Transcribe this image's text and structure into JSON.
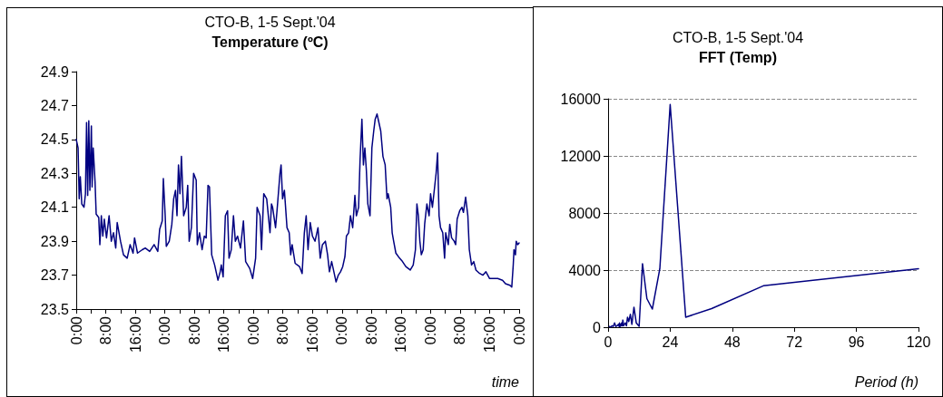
{
  "chart_data": [
    {
      "type": "line",
      "title": "CTO-B, 1-5 Sept.'04",
      "subtitle": "Temperature (ºC)",
      "xlabel": "time",
      "marker": "none",
      "grid": false,
      "xlim": [
        "2004-09-01T00:00",
        "2004-09-06T00:00"
      ],
      "ylim": [
        23.5,
        24.9
      ],
      "yticks": [
        23.5,
        23.7,
        23.9,
        24.1,
        24.3,
        24.5,
        24.7,
        24.9
      ],
      "xticks": [
        {
          "value": "2004-09-01T00:00",
          "label": "0:00"
        },
        {
          "value": "2004-09-01T04:00",
          "label": null
        },
        {
          "value": "2004-09-01T08:00",
          "label": "8:00"
        },
        {
          "value": "2004-09-01T12:00",
          "label": null
        },
        {
          "value": "2004-09-01T16:00",
          "label": "16:00"
        },
        {
          "value": "2004-09-01T20:00",
          "label": null
        },
        {
          "value": "2004-09-02T00:00",
          "label": "0:00"
        },
        {
          "value": "2004-09-02T04:00",
          "label": null
        },
        {
          "value": "2004-09-02T08:00",
          "label": "8:00"
        },
        {
          "value": "2004-09-02T12:00",
          "label": null
        },
        {
          "value": "2004-09-02T16:00",
          "label": "16:00"
        },
        {
          "value": "2004-09-02T20:00",
          "label": null
        },
        {
          "value": "2004-09-03T00:00",
          "label": "0:00"
        },
        {
          "value": "2004-09-03T04:00",
          "label": null
        },
        {
          "value": "2004-09-03T08:00",
          "label": "8:00"
        },
        {
          "value": "2004-09-03T12:00",
          "label": null
        },
        {
          "value": "2004-09-03T16:00",
          "label": "16:00"
        },
        {
          "value": "2004-09-03T20:00",
          "label": null
        },
        {
          "value": "2004-09-04T00:00",
          "label": "0:00"
        },
        {
          "value": "2004-09-04T04:00",
          "label": null
        },
        {
          "value": "2004-09-04T08:00",
          "label": "8:00"
        },
        {
          "value": "2004-09-04T12:00",
          "label": null
        },
        {
          "value": "2004-09-04T16:00",
          "label": "16:00"
        },
        {
          "value": "2004-09-04T20:00",
          "label": null
        },
        {
          "value": "2004-09-05T00:00",
          "label": "0:00"
        },
        {
          "value": "2004-09-05T04:00",
          "label": null
        },
        {
          "value": "2004-09-05T08:00",
          "label": "8:00"
        },
        {
          "value": "2004-09-05T12:00",
          "label": null
        },
        {
          "value": "2004-09-05T16:00",
          "label": "16:00"
        },
        {
          "value": "2004-09-05T20:00",
          "label": null
        },
        {
          "value": "2004-09-06T00:00",
          "label": "0:00"
        }
      ],
      "x": [
        "2004-09-01T00:00",
        "2004-09-01T00:30",
        "2004-09-01T00:48",
        "2004-09-01T01:06",
        "2004-09-01T01:30",
        "2004-09-01T02:06",
        "2004-09-01T02:30",
        "2004-09-01T02:48",
        "2004-09-01T03:06",
        "2004-09-01T03:24",
        "2004-09-01T03:42",
        "2004-09-01T04:06",
        "2004-09-01T04:18",
        "2004-09-01T04:36",
        "2004-09-01T05:06",
        "2004-09-01T05:24",
        "2004-09-01T06:06",
        "2004-09-01T06:24",
        "2004-09-01T06:48",
        "2004-09-01T07:12",
        "2004-09-01T07:36",
        "2004-09-01T08:12",
        "2004-09-01T08:54",
        "2004-09-01T09:30",
        "2004-09-01T10:06",
        "2004-09-01T10:42",
        "2004-09-01T11:06",
        "2004-09-01T12:00",
        "2004-09-01T12:48",
        "2004-09-01T13:48",
        "2004-09-01T14:36",
        "2004-09-01T15:24",
        "2004-09-01T15:48",
        "2004-09-01T16:36",
        "2004-09-01T17:54",
        "2004-09-01T18:42",
        "2004-09-01T19:54",
        "2004-09-01T21:06",
        "2004-09-01T22:06",
        "2004-09-01T22:36",
        "2004-09-01T23:18",
        "2004-09-01T23:36",
        "2004-09-02T00:06",
        "2004-09-02T00:24",
        "2004-09-02T01:12",
        "2004-09-02T01:54",
        "2004-09-02T02:24",
        "2004-09-02T02:54",
        "2004-09-02T03:18",
        "2004-09-02T03:42",
        "2004-09-02T04:06",
        "2004-09-02T04:30",
        "2004-09-02T05:06",
        "2004-09-02T05:48",
        "2004-09-02T06:12",
        "2004-09-02T06:36",
        "2004-09-02T07:12",
        "2004-09-02T07:48",
        "2004-09-02T08:30",
        "2004-09-02T08:48",
        "2004-09-02T09:24",
        "2004-09-02T10:06",
        "2004-09-02T10:42",
        "2004-09-02T11:12",
        "2004-09-02T11:42",
        "2004-09-02T12:06",
        "2004-09-02T12:42",
        "2004-09-02T13:30",
        "2004-09-02T14:24",
        "2004-09-02T15:00",
        "2004-09-02T15:18",
        "2004-09-02T15:48",
        "2004-09-02T16:24",
        "2004-09-02T17:00",
        "2004-09-02T17:24",
        "2004-09-02T18:00",
        "2004-09-02T18:36",
        "2004-09-02T19:06",
        "2004-09-02T19:42",
        "2004-09-02T20:30",
        "2004-09-02T21:18",
        "2004-09-02T21:54",
        "2004-09-02T23:00",
        "2004-09-02T23:48",
        "2004-09-03T00:36",
        "2004-09-03T01:00",
        "2004-09-03T01:48",
        "2004-09-03T02:12",
        "2004-09-03T02:48",
        "2004-09-03T03:36",
        "2004-09-03T04:30",
        "2004-09-03T04:54",
        "2004-09-03T05:12",
        "2004-09-03T06:00",
        "2004-09-03T06:24",
        "2004-09-03T07:12",
        "2004-09-03T07:30",
        "2004-09-03T07:54",
        "2004-09-03T08:24",
        "2004-09-03T09:06",
        "2004-09-03T09:42",
        "2004-09-03T10:06",
        "2004-09-03T10:30",
        "2004-09-03T11:18",
        "2004-09-03T12:30",
        "2004-09-03T13:12",
        "2004-09-03T13:48",
        "2004-09-03T14:18",
        "2004-09-03T14:48",
        "2004-09-03T15:24",
        "2004-09-03T16:00",
        "2004-09-03T16:42",
        "2004-09-03T17:30",
        "2004-09-03T18:06",
        "2004-09-03T18:42",
        "2004-09-03T19:30",
        "2004-09-03T20:06",
        "2004-09-03T20:36",
        "2004-09-03T21:12",
        "2004-09-03T21:42",
        "2004-09-03T22:24",
        "2004-09-03T23:00",
        "2004-09-03T23:36",
        "2004-09-04T00:12",
        "2004-09-04T00:48",
        "2004-09-04T01:12",
        "2004-09-04T01:48",
        "2004-09-04T02:18",
        "2004-09-04T02:54",
        "2004-09-04T03:30",
        "2004-09-04T03:54",
        "2004-09-04T04:30",
        "2004-09-04T04:54",
        "2004-09-04T05:24",
        "2004-09-04T05:48",
        "2004-09-04T06:12",
        "2004-09-04T06:36",
        "2004-09-04T07:00",
        "2004-09-04T07:36",
        "2004-09-04T08:06",
        "2004-09-04T08:36",
        "2004-09-04T09:00",
        "2004-09-04T09:30",
        "2004-09-04T09:54",
        "2004-09-04T10:30",
        "2004-09-04T11:06",
        "2004-09-04T11:42",
        "2004-09-04T12:12",
        "2004-09-04T12:30",
        "2004-09-04T13:12",
        "2004-09-04T13:36",
        "2004-09-04T14:00",
        "2004-09-04T14:36",
        "2004-09-04T15:36",
        "2004-09-04T16:24",
        "2004-09-04T17:18",
        "2004-09-04T18:30",
        "2004-09-04T19:18",
        "2004-09-04T19:54",
        "2004-09-04T20:18",
        "2004-09-04T20:42",
        "2004-09-04T21:06",
        "2004-09-04T21:30",
        "2004-09-04T22:00",
        "2004-09-04T22:24",
        "2004-09-04T23:00",
        "2004-09-04T23:36",
        "2004-09-05T00:00",
        "2004-09-05T00:30",
        "2004-09-05T01:00",
        "2004-09-05T01:30",
        "2004-09-05T01:54",
        "2004-09-05T02:18",
        "2004-09-05T02:42",
        "2004-09-05T03:18",
        "2004-09-05T03:48",
        "2004-09-05T04:06",
        "2004-09-05T04:48",
        "2004-09-05T05:12",
        "2004-09-05T05:42",
        "2004-09-05T06:24",
        "2004-09-05T06:48",
        "2004-09-05T07:12",
        "2004-09-05T07:54",
        "2004-09-05T08:30",
        "2004-09-05T08:54",
        "2004-09-05T09:30",
        "2004-09-05T10:06",
        "2004-09-05T10:30",
        "2004-09-05T11:06",
        "2004-09-05T11:42",
        "2004-09-05T12:18",
        "2004-09-05T13:18",
        "2004-09-05T14:12",
        "2004-09-05T15:00",
        "2004-09-05T16:00",
        "2004-09-05T17:00",
        "2004-09-05T18:12",
        "2004-09-05T19:30",
        "2004-09-05T20:18",
        "2004-09-05T21:30",
        "2004-09-05T22:00",
        "2004-09-05T22:24",
        "2004-09-05T22:36",
        "2004-09-05T23:00",
        "2004-09-05T23:12",
        "2004-09-05T23:36",
        "2004-09-06T00:00"
      ],
      "series": [
        {
          "color": "#000080",
          "values": [
            24.5,
            24.45,
            24.15,
            24.28,
            24.12,
            24.1,
            24.18,
            24.6,
            24.17,
            24.61,
            24.2,
            24.58,
            24.22,
            24.45,
            24.25,
            24.06,
            24.04,
            23.88,
            24.05,
            23.93,
            24.03,
            23.92,
            24.05,
            23.9,
            23.95,
            23.86,
            24.01,
            23.9,
            23.82,
            23.8,
            23.88,
            23.83,
            23.92,
            23.83,
            23.85,
            23.86,
            23.84,
            23.88,
            23.84,
            23.97,
            24.02,
            24.27,
            24.05,
            23.87,
            23.9,
            24,
            24.15,
            24.2,
            24.05,
            24.35,
            24.18,
            24.4,
            24.05,
            24.1,
            24.23,
            23.9,
            23.98,
            24.3,
            24.26,
            23.88,
            23.95,
            23.85,
            23.93,
            23.92,
            24.23,
            24.22,
            23.82,
            23.76,
            23.67,
            23.72,
            23.76,
            23.69,
            24.05,
            24.08,
            23.8,
            23.85,
            24.05,
            23.9,
            23.93,
            23.86,
            24.02,
            23.78,
            23.74,
            23.68,
            23.8,
            24.1,
            24.05,
            23.85,
            24.18,
            24.15,
            23.95,
            24.12,
            24.1,
            23.98,
            24.08,
            24.3,
            24.35,
            24.15,
            24.2,
            23.98,
            23.95,
            23.82,
            23.88,
            23.77,
            23.75,
            23.71,
            23.95,
            24.05,
            23.85,
            24.01,
            23.93,
            23.9,
            23.98,
            23.8,
            23.88,
            23.9,
            23.82,
            23.72,
            23.78,
            23.73,
            23.66,
            23.7,
            23.72,
            23.75,
            23.81,
            23.93,
            23.95,
            24.05,
            23.98,
            24.17,
            24.05,
            24.1,
            24.38,
            24.62,
            24.35,
            24.45,
            24.32,
            24.12,
            24.05,
            24.45,
            24.55,
            24.62,
            24.65,
            24.61,
            24.55,
            24.4,
            24.35,
            24.15,
            24.18,
            24.1,
            23.95,
            23.9,
            23.83,
            23.8,
            23.78,
            23.75,
            23.73,
            23.76,
            23.85,
            24.12,
            24.05,
            23.9,
            23.82,
            23.85,
            24,
            24.12,
            24.05,
            24.18,
            24.1,
            24.2,
            24.3,
            24.42,
            24.05,
            23.98,
            23.95,
            23.8,
            23.95,
            23.88,
            24,
            23.92,
            23.9,
            23.88,
            24.03,
            24.08,
            24.1,
            24.07,
            24.16,
            24.05,
            23.85,
            23.76,
            23.78,
            23.73,
            23.71,
            23.7,
            23.72,
            23.68,
            23.68,
            23.68,
            23.67,
            23.65,
            23.64,
            23.63,
            23.76,
            23.85,
            23.82,
            23.9,
            23.88,
            23.89
          ]
        }
      ]
    },
    {
      "type": "line",
      "title": "CTO-B, 1-5 Sept.'04",
      "subtitle": "FFT (Temp)",
      "xlabel": "Period (h)",
      "marker": "none",
      "grid": "y",
      "xlim": [
        0,
        120
      ],
      "xticks": [
        0,
        24,
        48,
        72,
        96,
        120
      ],
      "ylim": [
        0,
        16000
      ],
      "yticks": [
        0,
        4000,
        8000,
        12000,
        16000
      ],
      "x": [
        0.5,
        1,
        1.5,
        2,
        2.5,
        3,
        3.5,
        4,
        4.3,
        4.4,
        4.6,
        4.8,
        5,
        5.2,
        5.5,
        5.7,
        6,
        6.3,
        6.7,
        7.1,
        7.5,
        8,
        8.6,
        9.2,
        10,
        10.9,
        12,
        13.3,
        15,
        17.1,
        20,
        24,
        30,
        40,
        60,
        120
      ],
      "series": [
        {
          "color": "#000080",
          "values": [
            50,
            0,
            100,
            50,
            300,
            50,
            100,
            200,
            50,
            300,
            50,
            200,
            100,
            300,
            100,
            500,
            100,
            200,
            300,
            100,
            700,
            400,
            900,
            200,
            1400,
            300,
            60,
            4450,
            2000,
            1270,
            4100,
            15600,
            700,
            1300,
            2900,
            4100
          ]
        }
      ]
    }
  ]
}
